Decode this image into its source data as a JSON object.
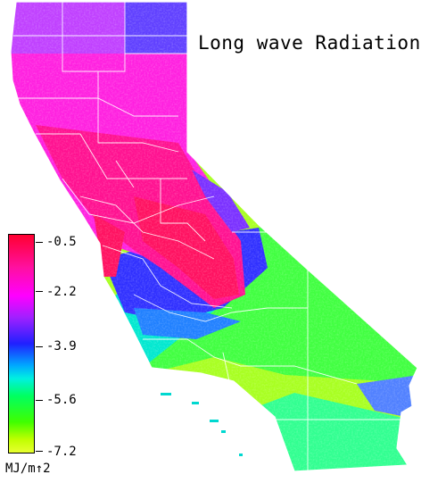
{
  "title": "Long wave Radiation",
  "legend": {
    "ticks": [
      "-0.5",
      "-2.2",
      "-3.9",
      "-5.6",
      "-7.2"
    ],
    "units": "MJ/m↑2",
    "colors": [
      "#ff0030",
      "#ff00ff",
      "#2020ff",
      "#00f0e0",
      "#40ff00",
      "#e8ff30"
    ]
  }
}
